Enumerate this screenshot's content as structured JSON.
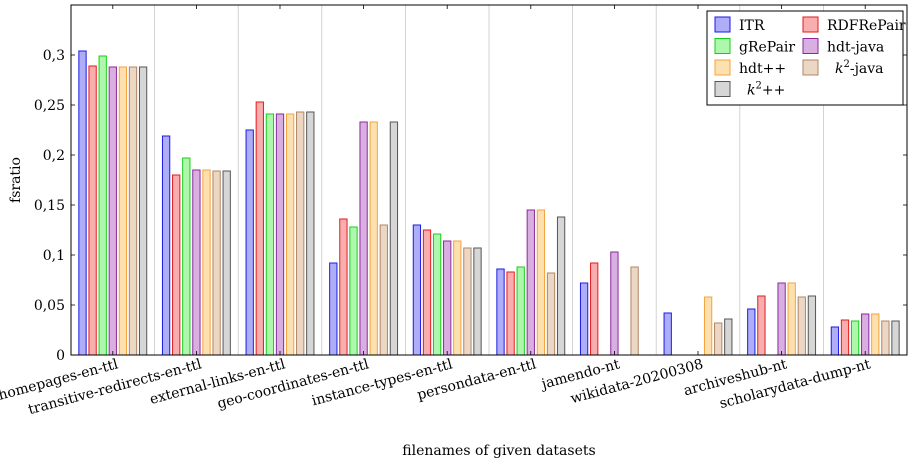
{
  "chart_data": {
    "type": "bar",
    "title": "",
    "xlabel": "filenames of given datasets",
    "ylabel": "fsratio",
    "ylim": [
      0,
      0.35
    ],
    "yticks": [
      0,
      0.05,
      0.1,
      0.15,
      0.2,
      0.25,
      0.3
    ],
    "ytick_labels": [
      "0",
      "0,05",
      "0,1",
      "0,15",
      "0,2",
      "0,25",
      "0,3"
    ],
    "grid": "vertical-major",
    "legend_position": "top-right",
    "categories": [
      "homepages-en-ttl",
      "transitive-redirects-en-ttl",
      "external-links-en-ttl",
      "geo-coordinates-en-ttl",
      "instance-types-en-ttl",
      "persondata-en-ttl",
      "jamendo-nt",
      "wikidata-20200308",
      "archiveshub-nt",
      "scholarydata-dump-nt"
    ],
    "series": [
      {
        "name": "ITR",
        "legend_base": "ITR",
        "legend_sup": "",
        "legend_suffix": "",
        "italic": false,
        "fill": "#aeaef8",
        "stroke": "#1a1ae6",
        "values": [
          0.304,
          0.219,
          0.225,
          0.092,
          0.13,
          0.086,
          0.072,
          0.042,
          0.046,
          0.028
        ]
      },
      {
        "name": "RDFRePair",
        "legend_base": "RDFRePair",
        "legend_sup": "",
        "legend_suffix": "",
        "italic": false,
        "fill": "#f8aeae",
        "stroke": "#e61a1a",
        "values": [
          0.289,
          0.18,
          0.253,
          0.136,
          0.125,
          0.083,
          0.092,
          null,
          0.059,
          0.035
        ]
      },
      {
        "name": "gRePair",
        "legend_base": "gRePair",
        "legend_sup": "",
        "legend_suffix": "",
        "italic": false,
        "fill": "#aef8ae",
        "stroke": "#1acc1a",
        "values": [
          0.299,
          0.197,
          0.241,
          0.128,
          0.121,
          0.088,
          null,
          null,
          null,
          0.034
        ]
      },
      {
        "name": "hdt-java",
        "legend_base": "hdt-java",
        "legend_sup": "",
        "legend_suffix": "",
        "italic": false,
        "fill": "#d9aee0",
        "stroke": "#8a2a9a",
        "values": [
          0.288,
          0.185,
          0.241,
          0.233,
          0.114,
          0.145,
          0.103,
          null,
          0.072,
          0.041
        ]
      },
      {
        "name": "hdt++",
        "legend_base": "hdt++",
        "legend_sup": "",
        "legend_suffix": "",
        "italic": false,
        "fill": "#fde0b0",
        "stroke": "#f5a33a",
        "values": [
          0.288,
          0.185,
          0.241,
          0.233,
          0.114,
          0.145,
          null,
          0.058,
          0.072,
          0.041
        ]
      },
      {
        "name": "k2-java",
        "legend_base": "k",
        "legend_sup": "2",
        "legend_suffix": "-java",
        "italic": true,
        "fill": "#ebd7c4",
        "stroke": "#b08566",
        "values": [
          0.288,
          0.184,
          0.243,
          0.13,
          0.107,
          0.082,
          0.088,
          0.032,
          0.058,
          0.034
        ]
      },
      {
        "name": "k2++",
        "legend_base": "k",
        "legend_sup": "2",
        "legend_suffix": "++",
        "italic": true,
        "fill": "#d6d6d6",
        "stroke": "#555555",
        "values": [
          0.288,
          0.184,
          0.243,
          0.233,
          0.107,
          0.138,
          null,
          0.036,
          0.059,
          0.034
        ]
      }
    ]
  }
}
